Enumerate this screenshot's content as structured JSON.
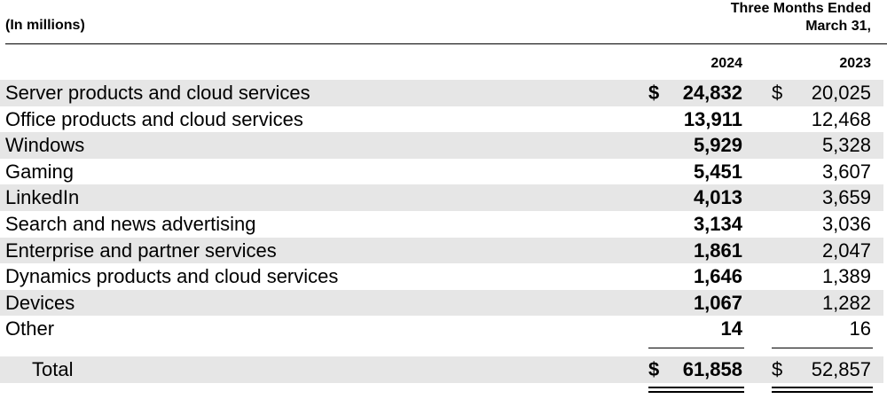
{
  "header": {
    "units": "(In millions)",
    "period_line1": "Three Months Ended",
    "period_line2": "March 31,",
    "year_current": "2024",
    "year_prior": "2023"
  },
  "currency_symbol": "$",
  "rows": [
    {
      "label": "Server products and cloud services",
      "v2024": "24,832",
      "v2023": "20,025"
    },
    {
      "label": "Office products and cloud services",
      "v2024": "13,911",
      "v2023": "12,468"
    },
    {
      "label": "Windows",
      "v2024": "5,929",
      "v2023": "5,328"
    },
    {
      "label": "Gaming",
      "v2024": "5,451",
      "v2023": "3,607"
    },
    {
      "label": "LinkedIn",
      "v2024": "4,013",
      "v2023": "3,659"
    },
    {
      "label": "Search and news advertising",
      "v2024": "3,134",
      "v2023": "3,036"
    },
    {
      "label": "Enterprise and partner services",
      "v2024": "1,861",
      "v2023": "2,047"
    },
    {
      "label": "Dynamics products and cloud services",
      "v2024": "1,646",
      "v2023": "1,389"
    },
    {
      "label": "Devices",
      "v2024": "1,067",
      "v2023": "1,282"
    },
    {
      "label": "Other",
      "v2024": "14",
      "v2023": "16"
    }
  ],
  "total": {
    "label": "Total",
    "v2024": "61,858",
    "v2023": "52,857"
  }
}
